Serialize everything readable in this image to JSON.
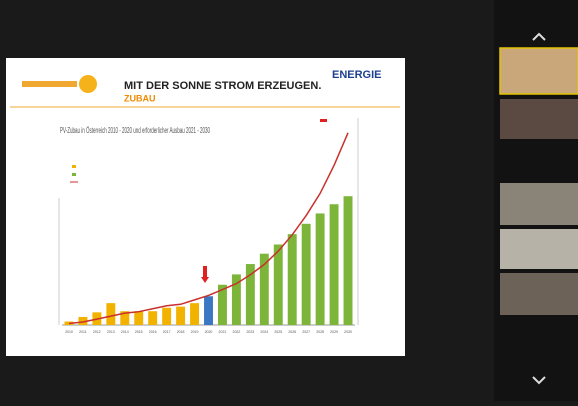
{
  "slide": {
    "title": "MIT DER SONNE STROM ERZEUGEN.",
    "subtitle": "ZUBAU",
    "logo": "ENERGIE"
  },
  "chart_data": {
    "type": "bar",
    "title": "PV-Zubau in Österreich 2010 - 2020 und erforderlicher Ausbau 2021 - 2030",
    "categories": [
      "2010",
      "2011",
      "2012",
      "2013",
      "2014",
      "2015",
      "2016",
      "2017",
      "2018",
      "2019",
      "2020",
      "2021",
      "2022",
      "2023",
      "2024",
      "2025",
      "2026",
      "2027",
      "2028",
      "2029",
      "2030"
    ],
    "series": [
      {
        "values": [
          30,
          70,
          110,
          190,
          120,
          120,
          120,
          150,
          160,
          190,
          250,
          350,
          440,
          530,
          620,
          700,
          790,
          880,
          970,
          1050,
          1120
        ],
        "colors": [
          "#f2b200",
          "#f2b200",
          "#f2b200",
          "#f2b200",
          "#f2b200",
          "#f2b200",
          "#f2b200",
          "#f2b200",
          "#f2b200",
          "#f2b200",
          "#3b78c4",
          "#7cb53a",
          "#7cb53a",
          "#7cb53a",
          "#7cb53a",
          "#7cb53a",
          "#7cb53a",
          "#7cb53a",
          "#7cb53a",
          "#7cb53a",
          "#7cb53a"
        ]
      },
      {
        "type": "line",
        "axis": "y2",
        "color": "#c9302c",
        "values": [
          0.1,
          0.2,
          0.4,
          0.6,
          0.8,
          0.9,
          1.1,
          1.3,
          1.4,
          1.7,
          2.0,
          2.4,
          2.8,
          3.4,
          4.1,
          5.0,
          6.1,
          7.4,
          8.9,
          10.8,
          13.0
        ]
      }
    ],
    "ylim": [
      0,
      1800
    ],
    "y2lim": [
      0,
      14
    ]
  }
}
